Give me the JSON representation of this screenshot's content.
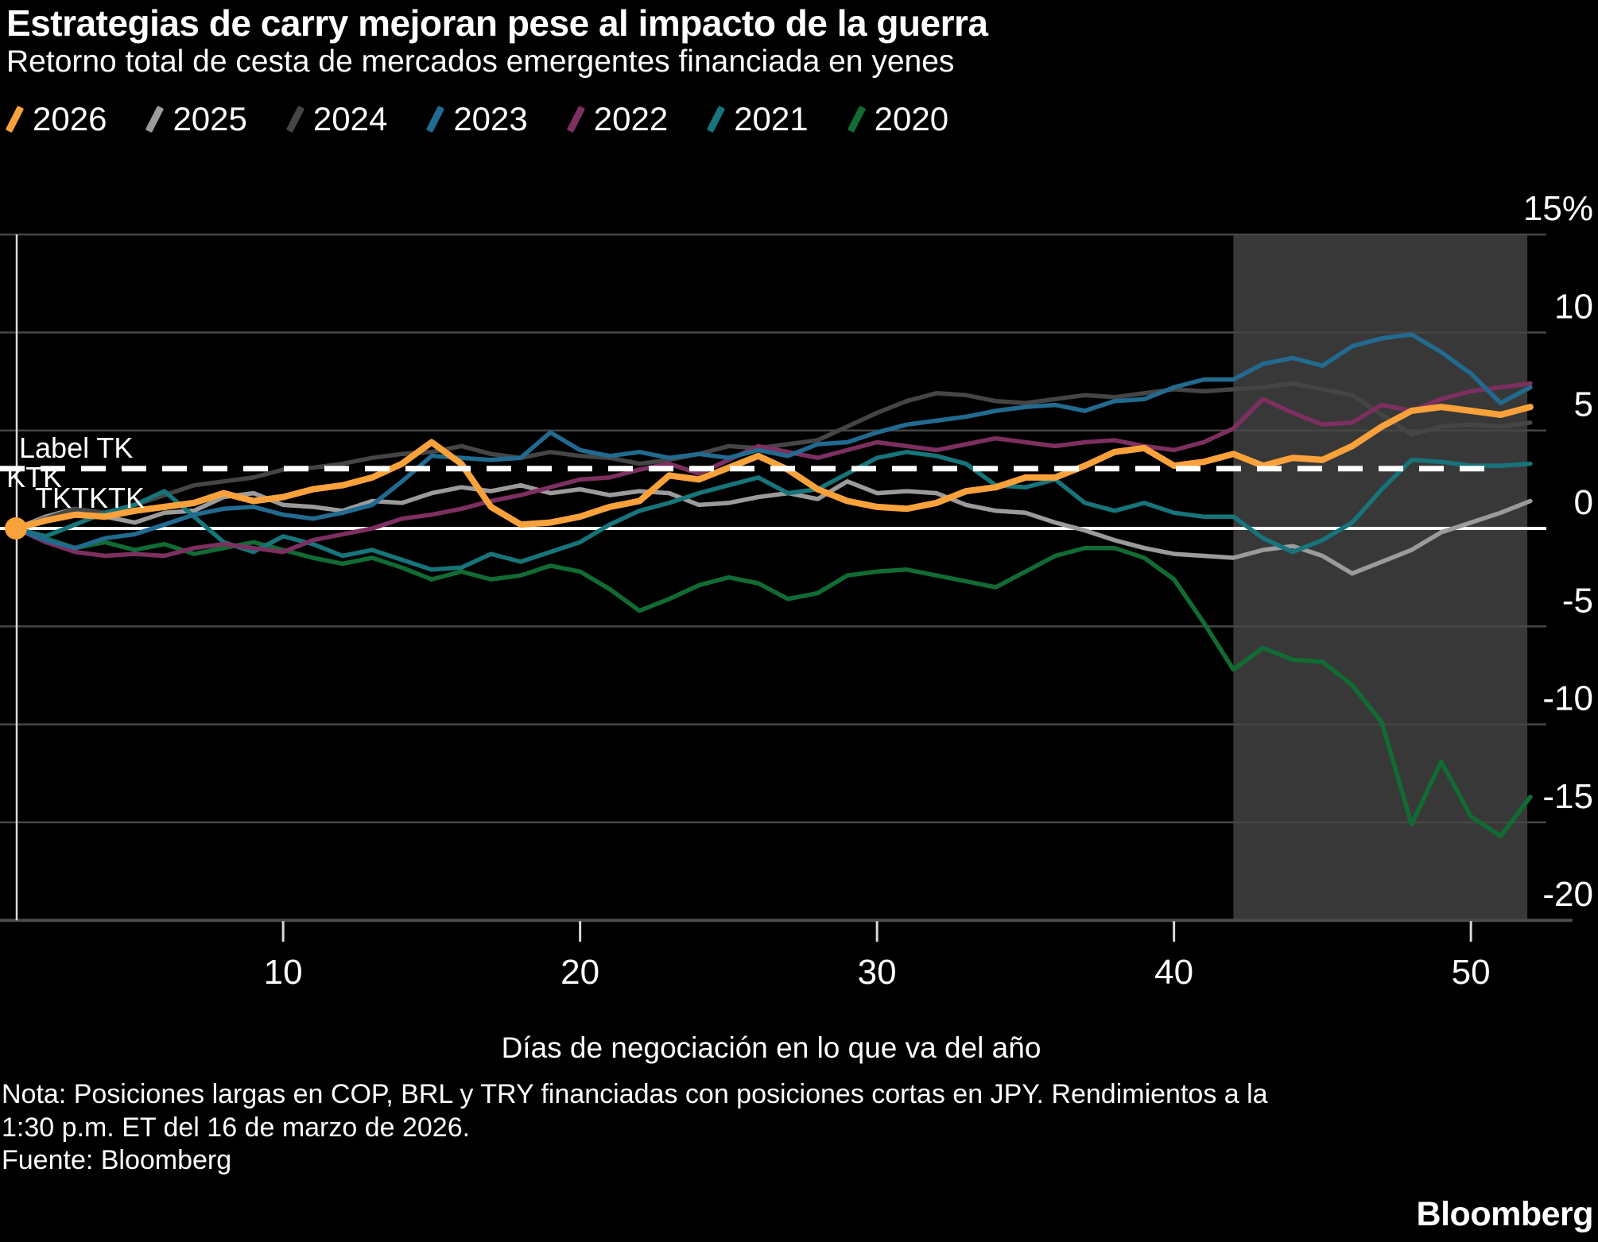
{
  "title": "Estrategias de carry mejoran pese al impacto de la guerra",
  "subtitle": "Retorno total de cesta de mercados emergentes financiada en yenes",
  "legend": [
    {
      "label": "2026",
      "color": "#F9A13A"
    },
    {
      "label": "2025",
      "color": "#9B9B9B"
    },
    {
      "label": "2024",
      "color": "#454545"
    },
    {
      "label": "2023",
      "color": "#226A90"
    },
    {
      "label": "2022",
      "color": "#7D2F60"
    },
    {
      "label": "2021",
      "color": "#17747A"
    },
    {
      "label": "2020",
      "color": "#116B33"
    }
  ],
  "annotations": {
    "label_tk": "Label TK",
    "tktk": "TKTK",
    "tktktk": "TKTKTK"
  },
  "footer": {
    "note_line1": "Nota: Posiciones largas en COP, BRL y TRY financiadas con posiciones cortas en JPY. Rendimientos a la",
    "note_line2": "1:30 p.m. ET del 16 de marzo de 2026.",
    "source": "Fuente: Bloomberg",
    "logo": "Bloomberg"
  },
  "colors": {
    "background": "#000000",
    "grid": "#464646",
    "zero_line": "#FFFFFF",
    "bottom_axis": "#4A4A4A",
    "shaded_region": "#383838",
    "dashed_line": "#FFFFFF",
    "tick": "#D8D8D8",
    "text": "#FFFFFF"
  },
  "chart_data": {
    "type": "line",
    "title": "Estrategias de carry mejoran pese al impacto de la guerra",
    "subtitle": "Retorno total de cesta de mercados emergentes financiada en yenes",
    "xlabel": "Días de negociación en lo que va del año",
    "ylabel": "%",
    "xlim": [
      1,
      52.5
    ],
    "ylim": [
      -20,
      15
    ],
    "grid": "horizontal",
    "legend_position": "top",
    "x_ticks": [
      10,
      20,
      30,
      40,
      50
    ],
    "y_ticks": [
      {
        "value": 15,
        "label": "15%"
      },
      {
        "value": 10,
        "label": "10"
      },
      {
        "value": 5,
        "label": "5"
      },
      {
        "value": 0,
        "label": "0"
      },
      {
        "value": -5,
        "label": "-5"
      },
      {
        "value": -10,
        "label": "-10"
      },
      {
        "value": -15,
        "label": "-15"
      },
      {
        "value": -20,
        "label": "-20"
      }
    ],
    "zero_line_value": 0,
    "dashed_reference_value": 3.05,
    "dashed_to_day": 50.9,
    "shaded_region": {
      "from_day": 42,
      "to_day": 51.9
    },
    "x": [
      1,
      2,
      3,
      4,
      5,
      6,
      7,
      8,
      9,
      10,
      11,
      12,
      13,
      14,
      15,
      16,
      17,
      18,
      19,
      20,
      21,
      22,
      23,
      24,
      25,
      26,
      27,
      28,
      29,
      30,
      31,
      32,
      33,
      34,
      35,
      36,
      37,
      38,
      39,
      40,
      41,
      42,
      43,
      44,
      45,
      46,
      47,
      48,
      49,
      50,
      51,
      52
    ],
    "series": [
      {
        "name": "2020",
        "color": "#116B33",
        "width": 5.5,
        "start_dot": false,
        "values": [
          0,
          -0.5,
          -1.0,
          -0.7,
          -1.1,
          -0.8,
          -1.3,
          -1.0,
          -0.7,
          -1.1,
          -1.5,
          -1.8,
          -1.5,
          -2.0,
          -2.6,
          -2.2,
          -2.6,
          -2.4,
          -1.9,
          -2.2,
          -3.1,
          -4.2,
          -3.6,
          -2.9,
          -2.5,
          -2.8,
          -3.6,
          -3.3,
          -2.4,
          -2.2,
          -2.1,
          -2.4,
          -2.7,
          -3.0,
          -2.2,
          -1.4,
          -1.0,
          -1.0,
          -1.5,
          -2.6,
          -4.8,
          -7.2,
          -6.1,
          -6.7,
          -6.8,
          -8.0,
          -9.9,
          -15.1,
          -11.9,
          -14.7,
          -15.7,
          -13.7
        ]
      },
      {
        "name": "2025",
        "color": "#9B9B9B",
        "width": 5.5,
        "start_dot": false,
        "values": [
          0,
          0.6,
          1.0,
          0.6,
          0.3,
          0.8,
          0.9,
          1.6,
          1.8,
          1.2,
          1.1,
          0.9,
          1.4,
          1.3,
          1.8,
          2.1,
          1.9,
          2.2,
          1.8,
          2.0,
          1.7,
          1.9,
          1.8,
          1.2,
          1.3,
          1.6,
          1.8,
          1.5,
          2.4,
          1.8,
          1.9,
          1.8,
          1.2,
          0.9,
          0.8,
          0.3,
          -0.1,
          -0.6,
          -1.0,
          -1.3,
          -1.4,
          -1.5,
          -1.1,
          -0.9,
          -1.4,
          -2.3,
          -1.7,
          -1.1,
          -0.2,
          0.3,
          0.8,
          1.4
        ]
      },
      {
        "name": "2024",
        "color": "#454545",
        "width": 5.5,
        "start_dot": false,
        "values": [
          0,
          0.5,
          1.0,
          0.8,
          1.2,
          1.7,
          2.2,
          2.4,
          2.6,
          3.0,
          3.1,
          3.3,
          3.6,
          3.8,
          3.9,
          4.2,
          3.8,
          3.6,
          3.9,
          3.7,
          3.6,
          3.3,
          3.5,
          3.8,
          4.2,
          4.1,
          4.3,
          4.5,
          5.2,
          5.9,
          6.5,
          6.9,
          6.8,
          6.5,
          6.4,
          6.6,
          6.8,
          6.7,
          6.9,
          7.1,
          7.0,
          7.1,
          7.2,
          7.4,
          7.1,
          6.8,
          5.8,
          4.8,
          5.2,
          5.3,
          5.2,
          5.4
        ]
      },
      {
        "name": "2021",
        "color": "#17747A",
        "width": 5.5,
        "start_dot": false,
        "values": [
          0,
          -0.4,
          0.2,
          0.8,
          1.2,
          1.9,
          0.6,
          -0.7,
          -1.2,
          -0.4,
          -0.8,
          -1.4,
          -1.1,
          -1.6,
          -2.1,
          -2.0,
          -1.3,
          -1.7,
          -1.2,
          -0.7,
          0.2,
          0.9,
          1.3,
          1.8,
          2.2,
          2.6,
          1.8,
          2.0,
          2.8,
          3.6,
          3.9,
          3.7,
          3.3,
          2.2,
          2.1,
          2.5,
          1.3,
          0.9,
          1.3,
          0.8,
          0.6,
          0.6,
          -0.5,
          -1.2,
          -0.6,
          0.3,
          2.0,
          3.5,
          3.4,
          3.2,
          3.2,
          3.3
        ]
      },
      {
        "name": "2022",
        "color": "#7D2F60",
        "width": 5.5,
        "start_dot": false,
        "values": [
          0,
          -0.7,
          -1.2,
          -1.4,
          -1.3,
          -1.4,
          -1.0,
          -0.8,
          -1.0,
          -1.2,
          -0.6,
          -0.3,
          0.0,
          0.5,
          0.7,
          1.0,
          1.4,
          1.7,
          2.1,
          2.5,
          2.6,
          3.0,
          3.3,
          2.8,
          3.5,
          4.2,
          3.9,
          3.6,
          4.0,
          4.4,
          4.2,
          4.0,
          4.3,
          4.6,
          4.4,
          4.2,
          4.4,
          4.5,
          4.2,
          4.0,
          4.4,
          5.1,
          6.6,
          5.9,
          5.3,
          5.4,
          6.3,
          6.0,
          6.6,
          7.0,
          7.2,
          7.4
        ]
      },
      {
        "name": "2023",
        "color": "#226A90",
        "width": 5.5,
        "start_dot": false,
        "values": [
          0,
          -0.6,
          -1.0,
          -0.5,
          -0.3,
          0.2,
          0.7,
          1.0,
          1.1,
          0.7,
          0.5,
          0.8,
          1.2,
          2.4,
          3.7,
          3.6,
          3.5,
          3.6,
          4.9,
          4.0,
          3.7,
          3.9,
          3.6,
          3.8,
          3.6,
          4.0,
          3.7,
          4.3,
          4.4,
          4.9,
          5.3,
          5.5,
          5.7,
          6.0,
          6.2,
          6.3,
          6.0,
          6.5,
          6.6,
          7.2,
          7.6,
          7.6,
          8.4,
          8.7,
          8.3,
          9.3,
          9.7,
          9.9,
          9.0,
          7.9,
          6.4,
          7.2
        ]
      },
      {
        "name": "2026",
        "color": "#F9A13A",
        "width": 8,
        "start_dot": true,
        "values": [
          0,
          0.4,
          0.7,
          0.6,
          0.9,
          1.1,
          1.3,
          1.8,
          1.4,
          1.6,
          2.0,
          2.2,
          2.6,
          3.3,
          4.4,
          3.3,
          1.1,
          0.2,
          0.3,
          0.6,
          1.1,
          1.4,
          2.7,
          2.5,
          3.1,
          3.7,
          3.0,
          2.0,
          1.4,
          1.1,
          1.0,
          1.3,
          1.9,
          2.1,
          2.6,
          2.6,
          3.2,
          3.9,
          4.1,
          3.2,
          3.4,
          3.8,
          3.2,
          3.6,
          3.5,
          4.2,
          5.2,
          6.0,
          6.2,
          6.0,
          5.8,
          6.2
        ]
      }
    ]
  }
}
